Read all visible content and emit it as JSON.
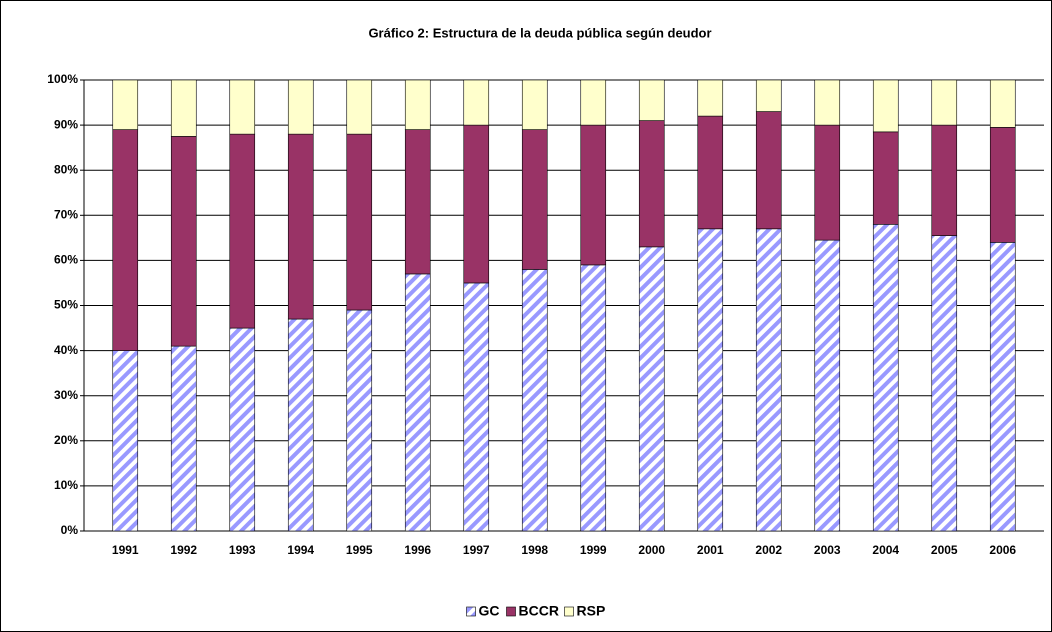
{
  "chart_data": {
    "type": "stacked_bar",
    "title": "Gráfico 2: Estructura de la deuda pública según deudor",
    "categories": [
      "1991",
      "1992",
      "1993",
      "1994",
      "1995",
      "1996",
      "1997",
      "1998",
      "1999",
      "2000",
      "2001",
      "2002",
      "2003",
      "2004",
      "2005",
      "2006"
    ],
    "series": [
      {
        "name": "GC",
        "color": "#9999ff",
        "pattern": "hatch",
        "values": [
          40,
          41,
          45,
          47,
          49,
          57,
          55,
          58,
          59,
          63,
          67,
          67,
          64.5,
          68,
          65.5,
          64
        ]
      },
      {
        "name": "BCCR",
        "color": "#993366",
        "values": [
          49,
          46.5,
          43,
          41,
          39,
          32,
          35,
          31,
          31,
          28,
          25,
          26,
          25.5,
          20.5,
          24.5,
          25.5
        ]
      },
      {
        "name": "RSP",
        "color": "#ffffcc",
        "values": [
          11,
          12.5,
          12,
          12,
          12,
          11,
          10,
          11,
          10,
          9,
          8,
          7,
          10,
          11.5,
          10,
          10.5
        ]
      }
    ],
    "ylim": [
      0,
      100
    ],
    "yticks": [
      {
        "value": 0,
        "label": "0%"
      },
      {
        "value": 10,
        "label": "10%"
      },
      {
        "value": 20,
        "label": "20%"
      },
      {
        "value": 30,
        "label": "30%"
      },
      {
        "value": 40,
        "label": "40%"
      },
      {
        "value": 50,
        "label": "50%"
      },
      {
        "value": 60,
        "label": "60%"
      },
      {
        "value": 70,
        "label": "70%"
      },
      {
        "value": 80,
        "label": "80%"
      },
      {
        "value": 90,
        "label": "90%"
      },
      {
        "value": 100,
        "label": "100%"
      }
    ],
    "grid": true,
    "legend": "bottom"
  }
}
